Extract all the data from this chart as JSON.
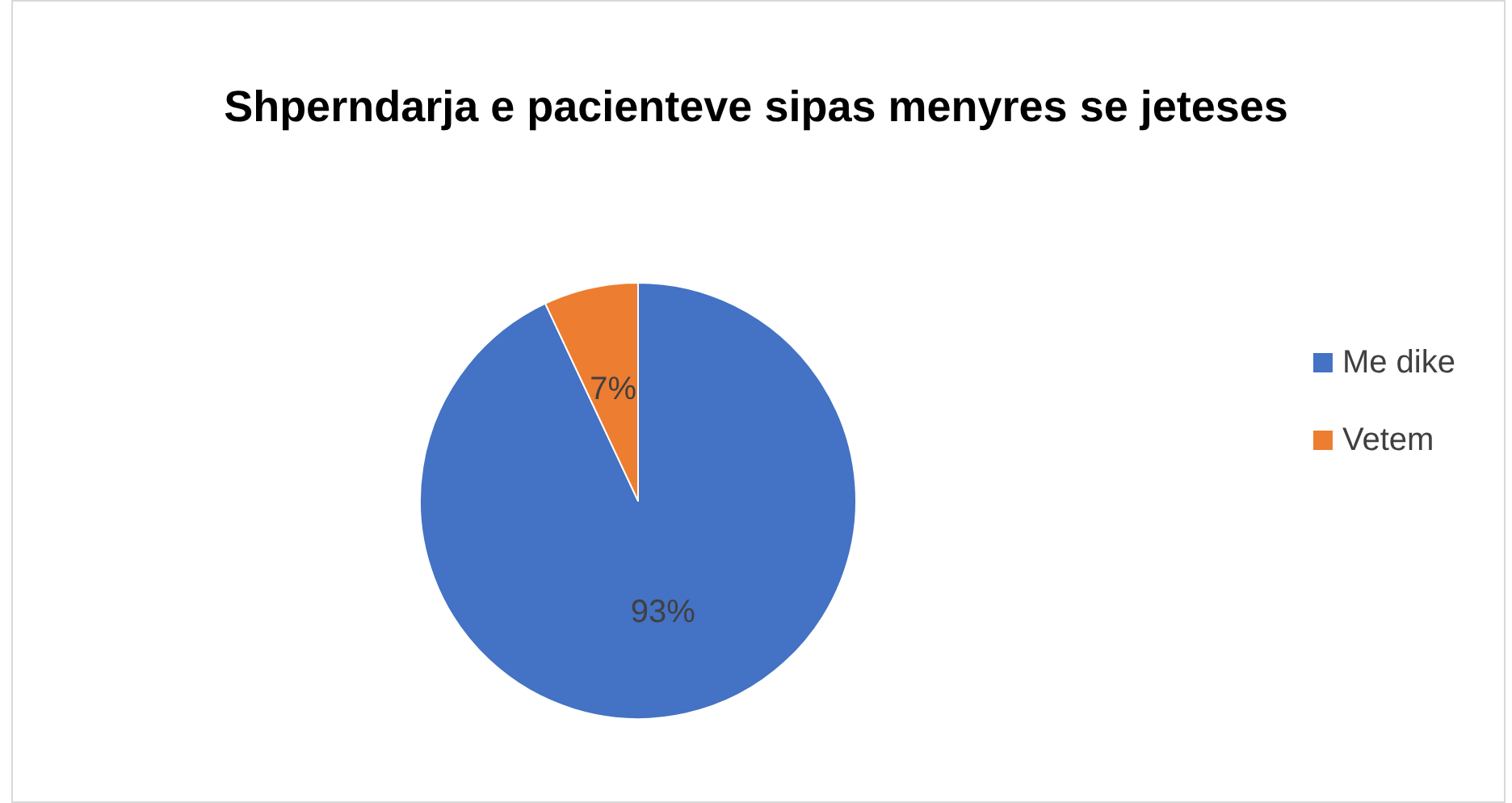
{
  "chart_data": {
    "type": "pie",
    "title": "Shperndarja e pacienteve sipas menyres se jeteses",
    "categories": [
      "Me dike",
      "Vetem"
    ],
    "values": [
      93,
      7
    ],
    "colors": [
      "#4472c4",
      "#ed7d31"
    ],
    "value_labels": [
      "93%",
      "7%"
    ],
    "legend": "right"
  }
}
